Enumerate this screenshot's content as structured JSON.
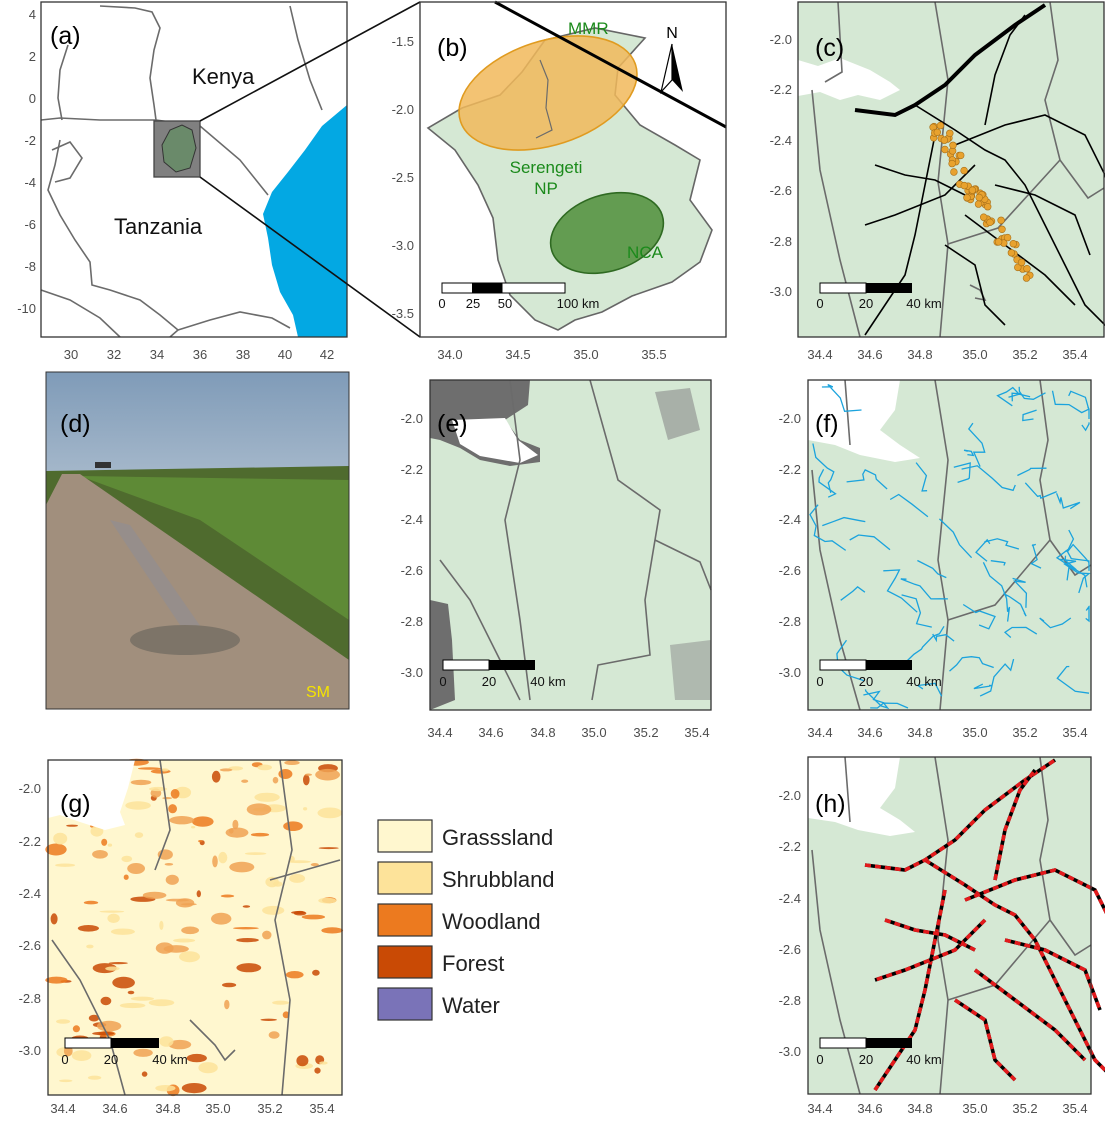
{
  "panels": {
    "a": {
      "label": "(a)",
      "country_1": "Kenya",
      "country_2": "Tanzania",
      "x_ticks": [
        "30",
        "32",
        "34",
        "36",
        "38",
        "40",
        "42"
      ],
      "y_ticks": [
        "4",
        "2",
        "0",
        "-2",
        "-4",
        "-6",
        "-8",
        "-10"
      ]
    },
    "b": {
      "label": "(b)",
      "area_mmr": "MMR",
      "area_np_line1": "Serengeti",
      "area_np_line2": "NP",
      "area_nca": "NCA",
      "north": "N",
      "x_ticks": [
        "34.0",
        "34.5",
        "35.0",
        "35.5"
      ],
      "y_ticks": [
        "-1.5",
        "-2.0",
        "-2.5",
        "-3.0",
        "-3.5"
      ],
      "scale": [
        "0",
        "25",
        "50",
        "100 km"
      ]
    },
    "c": {
      "label": "(c)"
    },
    "d": {
      "label": "(d)",
      "credit": "SM"
    },
    "e": {
      "label": "(e)"
    },
    "f": {
      "label": "(f)"
    },
    "g": {
      "label": "(g)"
    },
    "h": {
      "label": "(h)"
    },
    "shared": {
      "x_ticks": [
        "34.4",
        "34.6",
        "34.8",
        "35.0",
        "35.2",
        "35.4"
      ],
      "y_ticks": [
        "-2.0",
        "-2.2",
        "-2.4",
        "-2.6",
        "-2.8",
        "-3.0"
      ],
      "scale": [
        "0",
        "20",
        "40 km"
      ]
    }
  },
  "legend": [
    {
      "label": "Grasssland",
      "color": "#fff7cf"
    },
    {
      "label": "Shrubbland",
      "color": "#fde39a"
    },
    {
      "label": "Woodland",
      "color": "#ec7a1f"
    },
    {
      "label": "Forest",
      "color": "#c94a05"
    },
    {
      "label": "Water",
      "color": "#7a73b8"
    }
  ],
  "colors": {
    "land": "#d5e8d4",
    "sea": "#03a8e3",
    "mmr": "#f1b85a",
    "nca": "#4f8e3a",
    "area_text": "#1b8a1b",
    "roadkill": "#e8a22e",
    "river": "#1ba3dd",
    "road_red": "#e31a1c"
  }
}
